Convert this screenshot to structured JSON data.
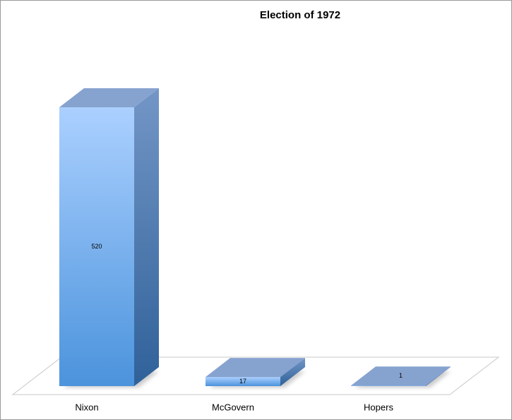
{
  "chart_data": {
    "type": "bar3d",
    "title": "Election of 1972",
    "categories": [
      "Nixon",
      "McGovern",
      "Hopers"
    ],
    "values": [
      520,
      17,
      1
    ],
    "color": "#6fa6e8"
  }
}
